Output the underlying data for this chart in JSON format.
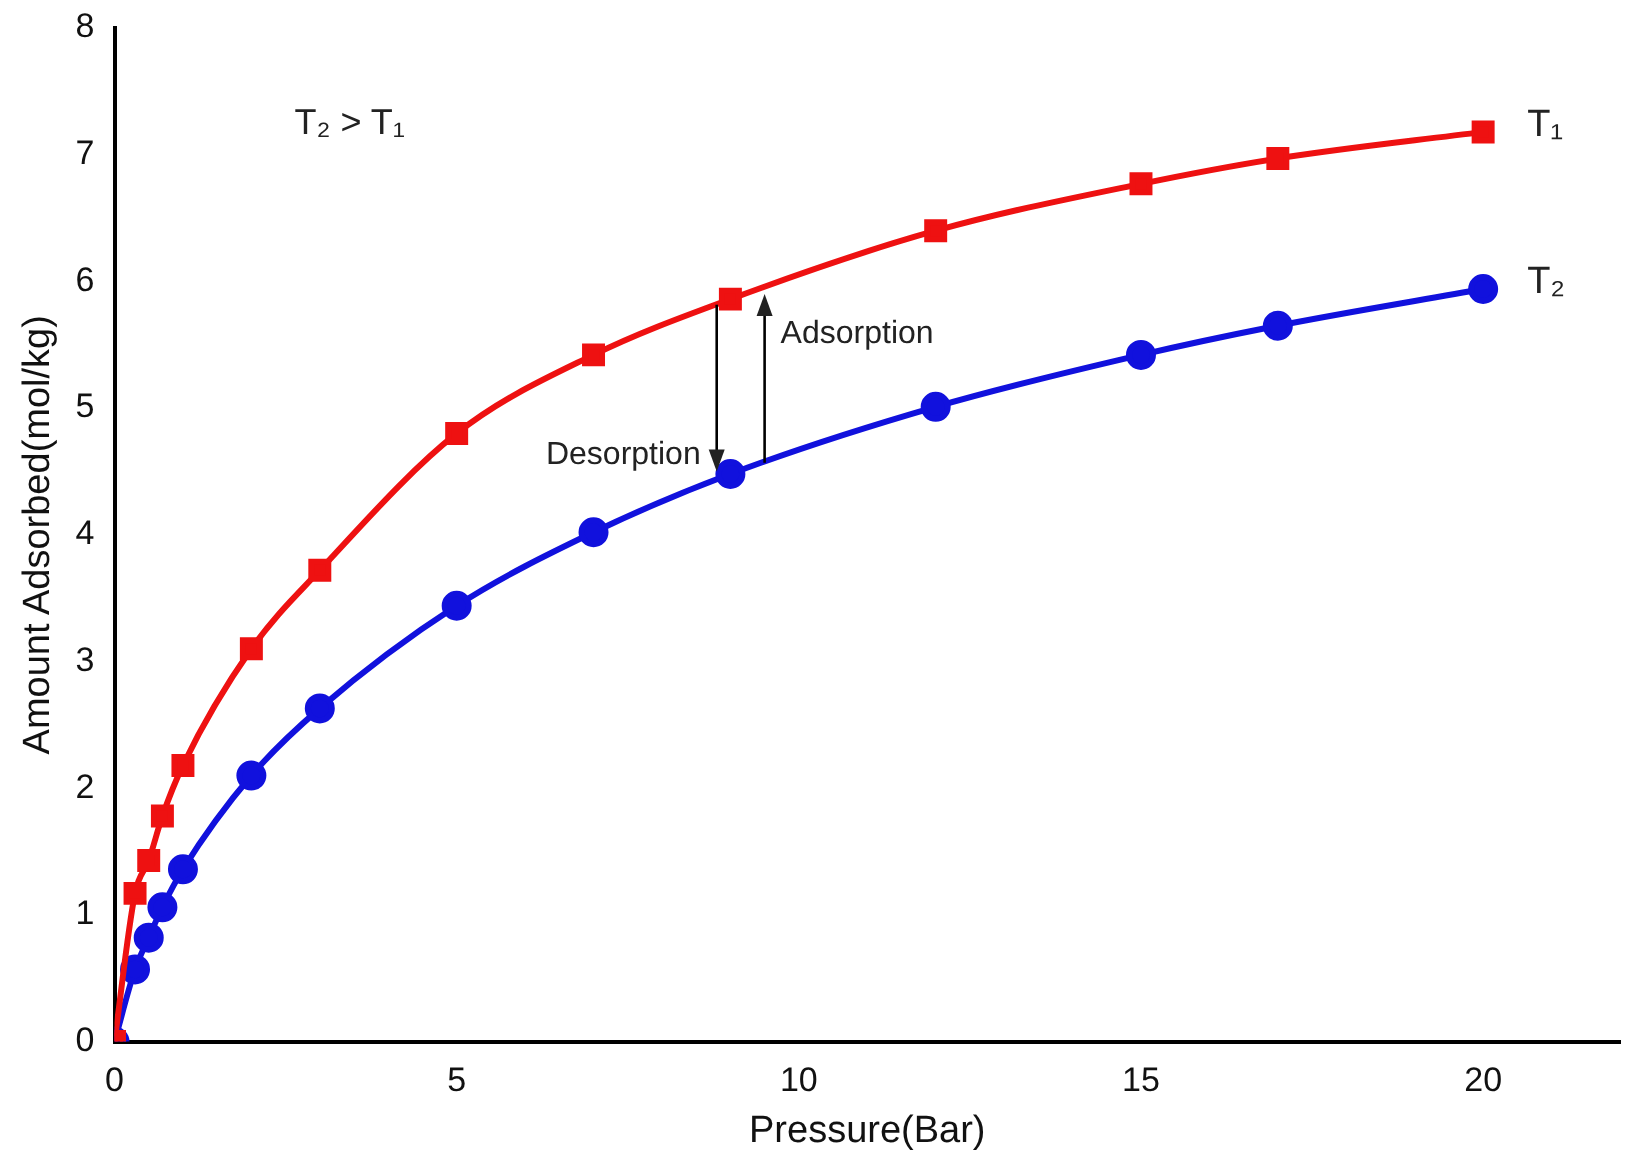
{
  "chart_data": {
    "type": "line",
    "xlabel": "Pressure(Bar)",
    "ylabel": "Amount Adsorbed(mol/kg)",
    "xlim": [
      0,
      22
    ],
    "xticks": [
      0,
      5,
      10,
      15,
      20
    ],
    "ylim": [
      0,
      8
    ],
    "yticks": [
      0,
      1,
      2,
      3,
      4,
      5,
      6,
      7,
      8
    ],
    "grid": false,
    "legend": false,
    "series": [
      {
        "name": "T₁",
        "color": "#ee1111",
        "marker": "square",
        "x": [
          0,
          0.3,
          0.5,
          0.7,
          1,
          2,
          3,
          5,
          7,
          9,
          12,
          15,
          17,
          20
        ],
        "values": [
          0,
          1.17,
          1.43,
          1.78,
          2.18,
          3.1,
          3.72,
          4.8,
          5.42,
          5.86,
          6.4,
          6.77,
          6.97,
          7.18
        ]
      },
      {
        "name": "T₂",
        "color": "#1111dd",
        "marker": "circle",
        "x": [
          0,
          0.3,
          0.5,
          0.7,
          1,
          2,
          3,
          5,
          7,
          9,
          12,
          15,
          17,
          20
        ],
        "values": [
          0,
          0.57,
          0.82,
          1.06,
          1.36,
          2.1,
          2.63,
          3.44,
          4.02,
          4.48,
          5.01,
          5.42,
          5.65,
          5.94
        ]
      }
    ],
    "annotations": [
      "T₂ > T₁",
      {
        "text": "Desorption",
        "x": 8.8,
        "y": 4.5
      },
      {
        "text": "Adsorption",
        "x": 9.5,
        "y": 5.9
      }
    ]
  }
}
